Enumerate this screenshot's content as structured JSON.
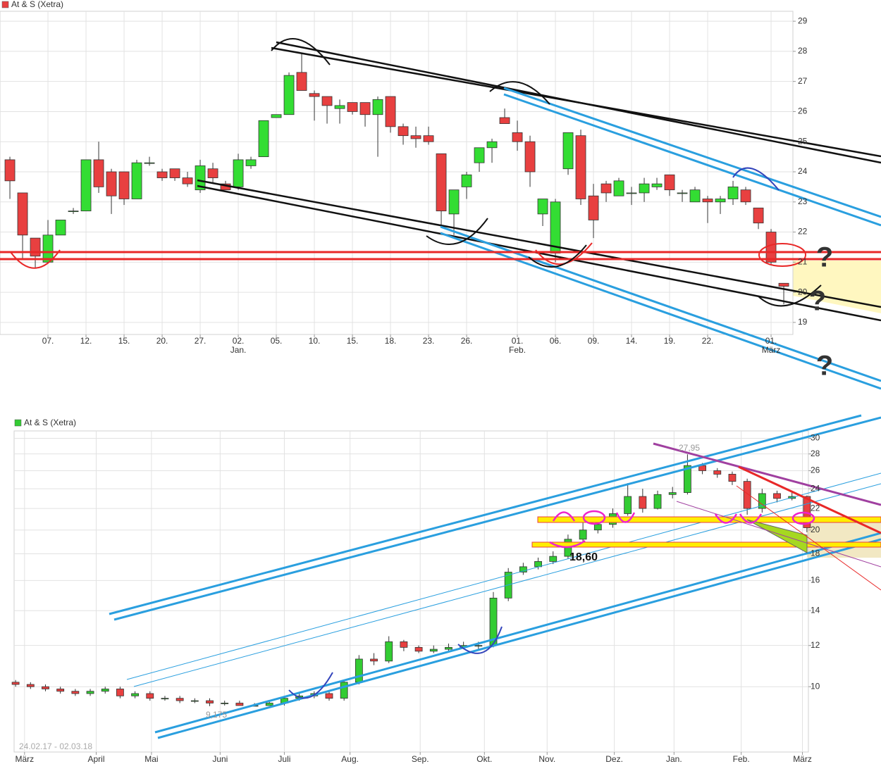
{
  "chart_data": [
    {
      "type": "candlestick",
      "title": "At & S (Xetra)",
      "legend_color": "#e84040",
      "color_up": "#33dd33",
      "color_down": "#e84040",
      "grid": true,
      "log_scale": false,
      "open": [
        24.4,
        23.3,
        21.8,
        21.0,
        21.9,
        22.7,
        22.7,
        24.4,
        24.0,
        24.0,
        23.1,
        24.3,
        24.0,
        24.1,
        23.8,
        23.4,
        24.1,
        23.6,
        23.5,
        24.2,
        24.5,
        25.8,
        25.9,
        27.3,
        26.6,
        26.5,
        26.1,
        26.3,
        26.3,
        25.9,
        26.5,
        25.5,
        25.2,
        25.2,
        24.6,
        22.6,
        23.5,
        24.3,
        24.8,
        25.8,
        25.3,
        25.0,
        22.6,
        21.3,
        24.1,
        25.2,
        23.2,
        23.6,
        23.2,
        23.3,
        23.3,
        23.5,
        23.9,
        23.3,
        23.0,
        23.1,
        23.0,
        23.1,
        23.4,
        22.8,
        22.0,
        20.3
      ],
      "high": [
        24.5,
        23.3,
        21.8,
        22.4,
        22.4,
        22.8,
        24.4,
        25.0,
        24.1,
        24.0,
        24.4,
        24.5,
        24.1,
        24.1,
        24.0,
        24.4,
        24.3,
        23.7,
        24.6,
        24.5,
        25.7,
        25.9,
        27.3,
        27.95,
        26.7,
        26.5,
        26.4,
        26.3,
        26.3,
        26.5,
        26.5,
        25.6,
        25.5,
        25.5,
        24.6,
        23.4,
        24.0,
        24.8,
        25.1,
        26.1,
        25.7,
        25.2,
        23.1,
        23.1,
        25.3,
        25.4,
        23.6,
        23.7,
        23.8,
        23.5,
        23.8,
        23.8,
        23.9,
        23.4,
        23.5,
        23.2,
        23.2,
        23.7,
        23.5,
        22.8,
        22.1,
        20.3
      ],
      "low": [
        23.1,
        21.1,
        20.8,
        21.0,
        21.9,
        22.6,
        22.7,
        23.3,
        22.6,
        22.9,
        23.1,
        24.2,
        23.7,
        23.7,
        23.5,
        23.3,
        23.6,
        23.4,
        23.4,
        24.1,
        24.5,
        25.8,
        25.9,
        26.7,
        25.7,
        25.6,
        25.6,
        25.9,
        25.5,
        24.5,
        25.3,
        24.9,
        24.8,
        24.9,
        22.2,
        21.9,
        23.1,
        24.0,
        24.3,
        25.6,
        24.7,
        23.5,
        22.2,
        21.0,
        23.9,
        22.9,
        21.8,
        23.0,
        23.2,
        22.9,
        23.0,
        23.4,
        23.2,
        23.0,
        23.0,
        22.3,
        22.6,
        22.9,
        22.9,
        22.1,
        20.9,
        19.6
      ],
      "close": [
        23.7,
        21.9,
        21.2,
        21.9,
        22.4,
        22.7,
        24.4,
        23.5,
        23.2,
        23.1,
        24.3,
        24.3,
        23.8,
        23.8,
        23.6,
        24.2,
        23.8,
        23.4,
        24.4,
        24.4,
        25.7,
        25.9,
        27.2,
        26.7,
        26.5,
        26.2,
        26.2,
        26.0,
        25.9,
        26.4,
        25.5,
        25.2,
        25.1,
        25.0,
        22.7,
        23.4,
        23.9,
        24.8,
        25.0,
        25.6,
        25.0,
        24.0,
        23.1,
        23.0,
        25.3,
        23.1,
        22.4,
        23.3,
        23.7,
        23.3,
        23.6,
        23.6,
        23.4,
        23.3,
        23.4,
        23.0,
        23.1,
        23.5,
        23.0,
        22.3,
        21.0,
        20.2
      ],
      "xlim": [
        -0.78,
        61.72
      ],
      "xticks": [
        {
          "value": 3,
          "label": "07."
        },
        {
          "value": 6,
          "label": "12."
        },
        {
          "value": 9,
          "label": "15."
        },
        {
          "value": 12,
          "label": "20."
        },
        {
          "value": 15,
          "label": "27."
        },
        {
          "value": 18,
          "label": "02."
        },
        {
          "value": 21,
          "label": "05."
        },
        {
          "value": 24,
          "label": "10."
        },
        {
          "value": 27,
          "label": "15."
        },
        {
          "value": 30,
          "label": "18."
        },
        {
          "value": 33,
          "label": "23."
        },
        {
          "value": 36,
          "label": "26."
        },
        {
          "value": 40,
          "label": "01."
        },
        {
          "value": 43,
          "label": "06."
        },
        {
          "value": 46,
          "label": "09."
        },
        {
          "value": 49,
          "label": "14."
        },
        {
          "value": 52,
          "label": "19."
        },
        {
          "value": 55,
          "label": "22."
        },
        {
          "value": 60,
          "label": "01."
        }
      ],
      "month_labels": [
        {
          "value": 18,
          "label": "Jan."
        },
        {
          "value": 40,
          "label": "Feb."
        },
        {
          "value": 60,
          "label": "März"
        }
      ],
      "ylim": [
        18.6,
        29.33
      ],
      "yticks": [
        19,
        20,
        21,
        22,
        23,
        24,
        25,
        26,
        27,
        28,
        29
      ],
      "annotations": [
        {
          "text": "?",
          "color": "#e83030"
        },
        {
          "text": "?",
          "color": "#222222"
        },
        {
          "text": "?",
          "color": "#2a8fd0"
        }
      ]
    },
    {
      "type": "candlestick",
      "title": "At & S (Xetra)",
      "legend_color": "#33cc33",
      "color_up": "#33cc33",
      "color_down": "#e84040",
      "grid": true,
      "log_scale": true,
      "open": [
        10.2,
        10.1,
        10.0,
        9.9,
        9.8,
        9.7,
        9.8,
        9.9,
        9.6,
        9.7,
        9.5,
        9.5,
        9.4,
        9.4,
        9.3,
        9.3,
        9.2,
        9.2,
        9.3,
        9.5,
        9.6,
        9.7,
        9.5,
        10.2,
        11.3,
        11.2,
        12.2,
        11.9,
        11.7,
        11.8,
        11.9,
        12.0,
        12.0,
        14.8,
        16.6,
        17.0,
        17.4,
        17.8,
        19.2,
        20.0,
        20.5,
        21.5,
        23.2,
        22.0,
        23.4,
        23.6,
        26.6,
        26.0,
        25.6,
        24.8,
        22.0,
        23.5,
        23.0,
        23.2
      ],
      "high": [
        10.3,
        10.2,
        10.1,
        10.0,
        9.9,
        9.9,
        10.0,
        10.0,
        9.8,
        9.8,
        9.6,
        9.6,
        9.5,
        9.5,
        9.4,
        9.4,
        9.3,
        9.4,
        9.6,
        9.7,
        9.8,
        9.8,
        10.3,
        11.5,
        11.6,
        12.5,
        12.3,
        12.0,
        12.0,
        12.1,
        12.2,
        12.2,
        15.2,
        16.9,
        17.3,
        17.7,
        18.2,
        19.6,
        21.0,
        21.2,
        22.0,
        24.6,
        24.0,
        23.8,
        24.2,
        27.95,
        26.9,
        26.3,
        25.9,
        25.1,
        24.0,
        23.8,
        23.6,
        23.3
      ],
      "low": [
        10.0,
        9.9,
        9.8,
        9.7,
        9.6,
        9.6,
        9.7,
        9.5,
        9.5,
        9.4,
        9.4,
        9.3,
        9.3,
        9.175,
        9.2,
        9.2,
        9.2,
        9.2,
        9.2,
        9.4,
        9.5,
        9.4,
        9.4,
        10.1,
        11.0,
        11.1,
        11.7,
        11.6,
        11.6,
        11.7,
        11.8,
        11.8,
        11.9,
        14.6,
        16.4,
        16.8,
        17.2,
        17.6,
        18.6,
        19.7,
        20.2,
        21.3,
        21.6,
        21.9,
        23.0,
        23.4,
        25.6,
        25.2,
        24.4,
        21.4,
        21.6,
        22.6,
        22.8,
        19.8
      ],
      "close": [
        10.1,
        10.0,
        9.9,
        9.8,
        9.7,
        9.8,
        9.9,
        9.6,
        9.7,
        9.5,
        9.5,
        9.4,
        9.4,
        9.3,
        9.3,
        9.2,
        9.2,
        9.3,
        9.5,
        9.6,
        9.7,
        9.5,
        10.2,
        11.3,
        11.2,
        12.2,
        11.9,
        11.7,
        11.8,
        11.9,
        12.0,
        12.0,
        14.8,
        16.6,
        17.0,
        17.4,
        17.8,
        19.2,
        20.0,
        20.5,
        21.5,
        23.2,
        22.0,
        23.4,
        23.6,
        26.6,
        26.0,
        25.6,
        24.8,
        22.0,
        23.5,
        23.0,
        23.2,
        20.2
      ],
      "xlim": [
        -0.1,
        53.1
      ],
      "xticks": [
        {
          "value": 0.6,
          "label": "März"
        },
        {
          "value": 5.4,
          "label": "April"
        },
        {
          "value": 9.1,
          "label": "Mai"
        },
        {
          "value": 13.7,
          "label": "Juni"
        },
        {
          "value": 18.0,
          "label": "Juli"
        },
        {
          "value": 22.4,
          "label": "Aug."
        },
        {
          "value": 27.1,
          "label": "Sep."
        },
        {
          "value": 31.4,
          "label": "Okt."
        },
        {
          "value": 35.6,
          "label": "Nov."
        },
        {
          "value": 40.1,
          "label": "Dez."
        },
        {
          "value": 44.1,
          "label": "Jan."
        },
        {
          "value": 48.6,
          "label": "Feb."
        },
        {
          "value": 52.7,
          "label": "März"
        }
      ],
      "ylim": [
        7.49,
        31.0
      ],
      "yticks": [
        10,
        12,
        14,
        16,
        18,
        20,
        22,
        24,
        26,
        28,
        30
      ],
      "price_labels": [
        {
          "value": 27.95,
          "label": "27,95"
        },
        {
          "value": 18.6,
          "label": "18,60"
        },
        {
          "value": 9.175,
          "label": "9,175"
        }
      ],
      "date_range": "24.02.17 - 02.03.18"
    }
  ]
}
